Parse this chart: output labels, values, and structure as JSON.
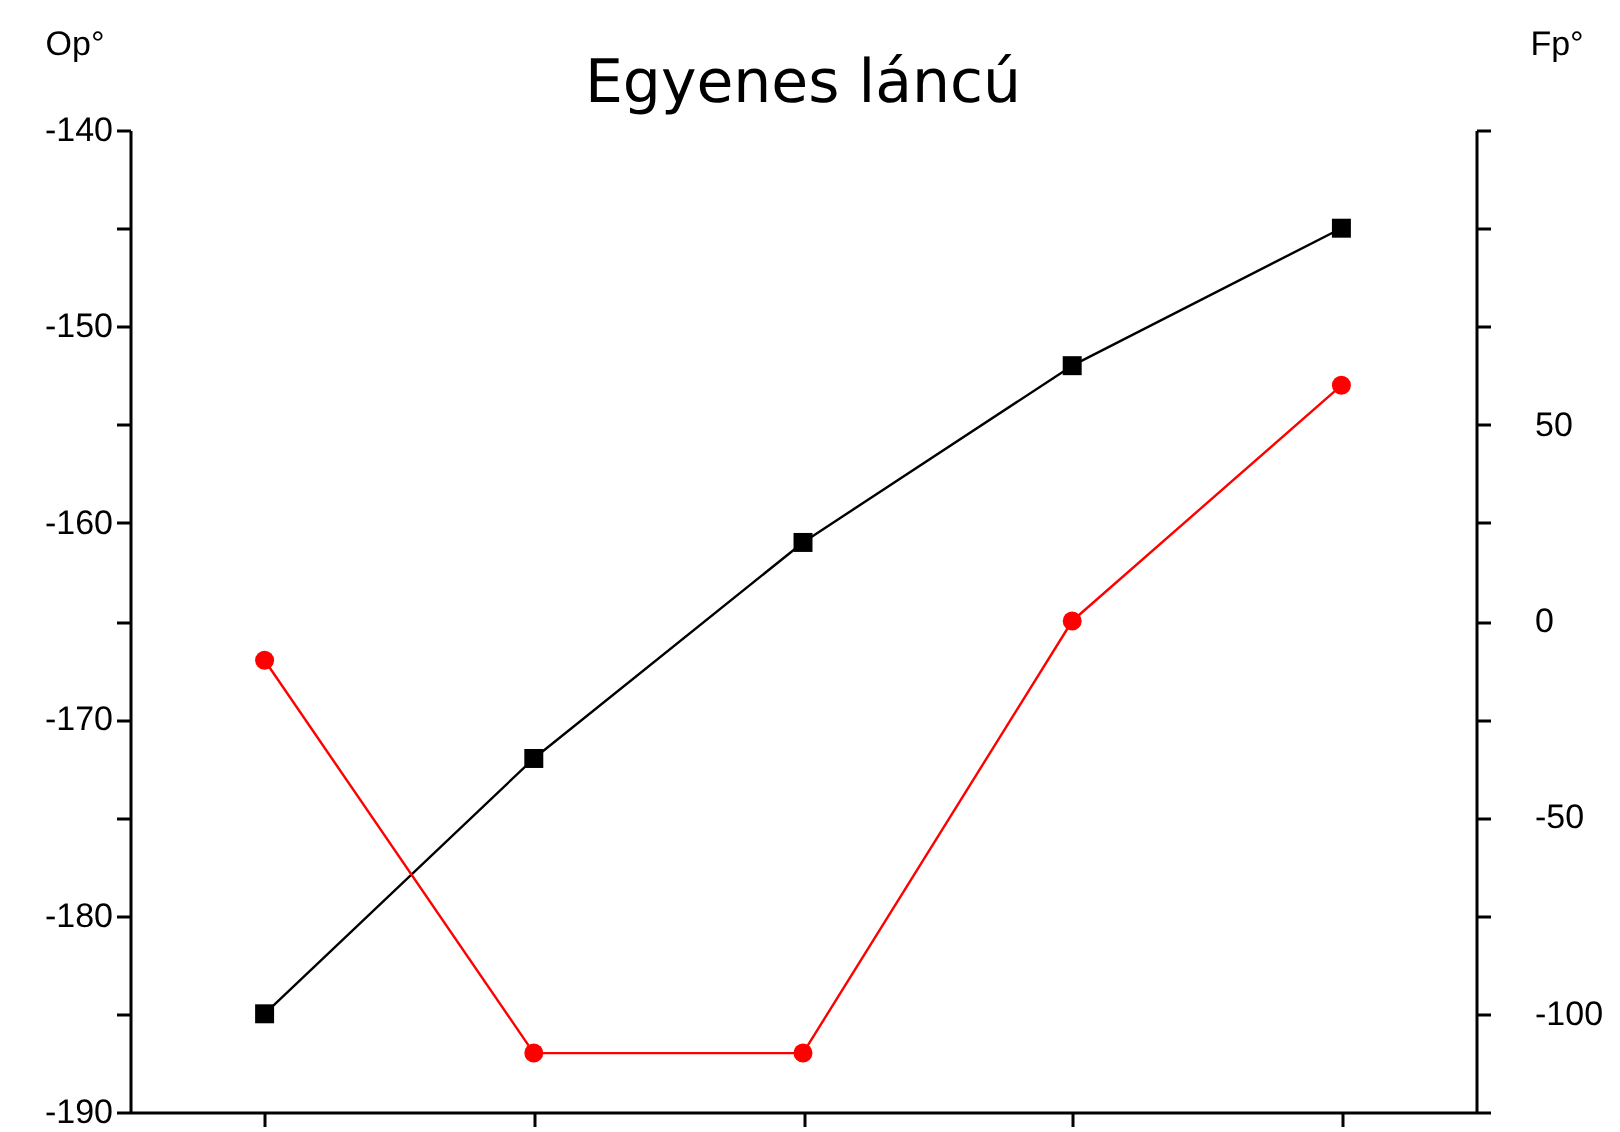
{
  "chart_data": {
    "type": "line",
    "title": "Egyenes láncú",
    "ylabel": "Op°",
    "y2label": "Fp°",
    "categories": [
      null,
      null,
      null,
      null,
      null
    ],
    "series": [
      {
        "color": "#000000",
        "marker": "square",
        "values": [
          -185,
          -172,
          -161,
          -152,
          -145
        ]
      },
      {
        "color": "#ff0000",
        "marker": "circle",
        "axis": "y2",
        "values": [
          -10,
          -110,
          -110,
          0,
          60
        ]
      }
    ],
    "ylim": [
      -190,
      -140
    ],
    "yticks": [
      -190,
      {
        "value": -185,
        "label": null
      },
      -180,
      {
        "value": -175,
        "label": null
      },
      -170,
      {
        "value": -165,
        "label": null
      },
      -160,
      {
        "value": -155,
        "label": null
      },
      -150,
      {
        "value": -145,
        "label": null
      },
      -140
    ],
    "y2lim": [
      -125,
      125
    ],
    "y2ticks": [
      {
        "value": -125,
        "label": null
      },
      -100,
      {
        "value": -75,
        "label": null
      },
      -50,
      {
        "value": -25,
        "label": null
      },
      0,
      {
        "value": 25,
        "label": null
      },
      50,
      {
        "value": 75,
        "label": null
      },
      {
        "value": 100,
        "label": null
      },
      {
        "value": 125,
        "label": null
      }
    ],
    "grid": false,
    "legend": false
  }
}
